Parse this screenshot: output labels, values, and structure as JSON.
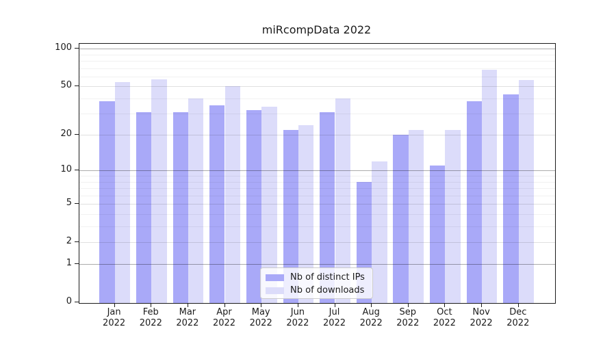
{
  "title": "miRcompData 2022",
  "legend": {
    "position": "lower center inside plot",
    "items": [
      {
        "label": "Nb of distinct IPs",
        "color": "#a9a9f8"
      },
      {
        "label": "Nb of downloads",
        "color": "#dcdcfa"
      }
    ]
  },
  "chart_data": {
    "type": "bar",
    "title": "miRcompData 2022",
    "categories": [
      "Jan 2022",
      "Feb 2022",
      "Mar 2022",
      "Apr 2022",
      "May 2022",
      "Jun 2022",
      "Jul 2022",
      "Aug 2022",
      "Sep 2022",
      "Oct 2022",
      "Nov 2022",
      "Dec 2022"
    ],
    "series": [
      {
        "name": "Nb of distinct IPs",
        "color": "#a9a9f8",
        "values": [
          38,
          31,
          31,
          35,
          32,
          22,
          31,
          8,
          20,
          11,
          38,
          43
        ]
      },
      {
        "name": "Nb of downloads",
        "color": "#dcdcfa",
        "values": [
          54,
          57,
          40,
          50,
          34,
          24,
          40,
          12,
          22,
          22,
          68,
          56
        ]
      }
    ],
    "xlabel": "",
    "ylabel": "",
    "yscale": "log10(1+y)",
    "y_ticks": [
      0,
      1,
      2,
      5,
      10,
      20,
      50,
      100
    ],
    "y_minor_ticks": [
      3,
      4,
      6,
      7,
      8,
      9,
      30,
      40,
      60,
      70,
      80,
      90
    ],
    "ylim": [
      0,
      109
    ],
    "grid": true,
    "legend_position": "lower center"
  }
}
